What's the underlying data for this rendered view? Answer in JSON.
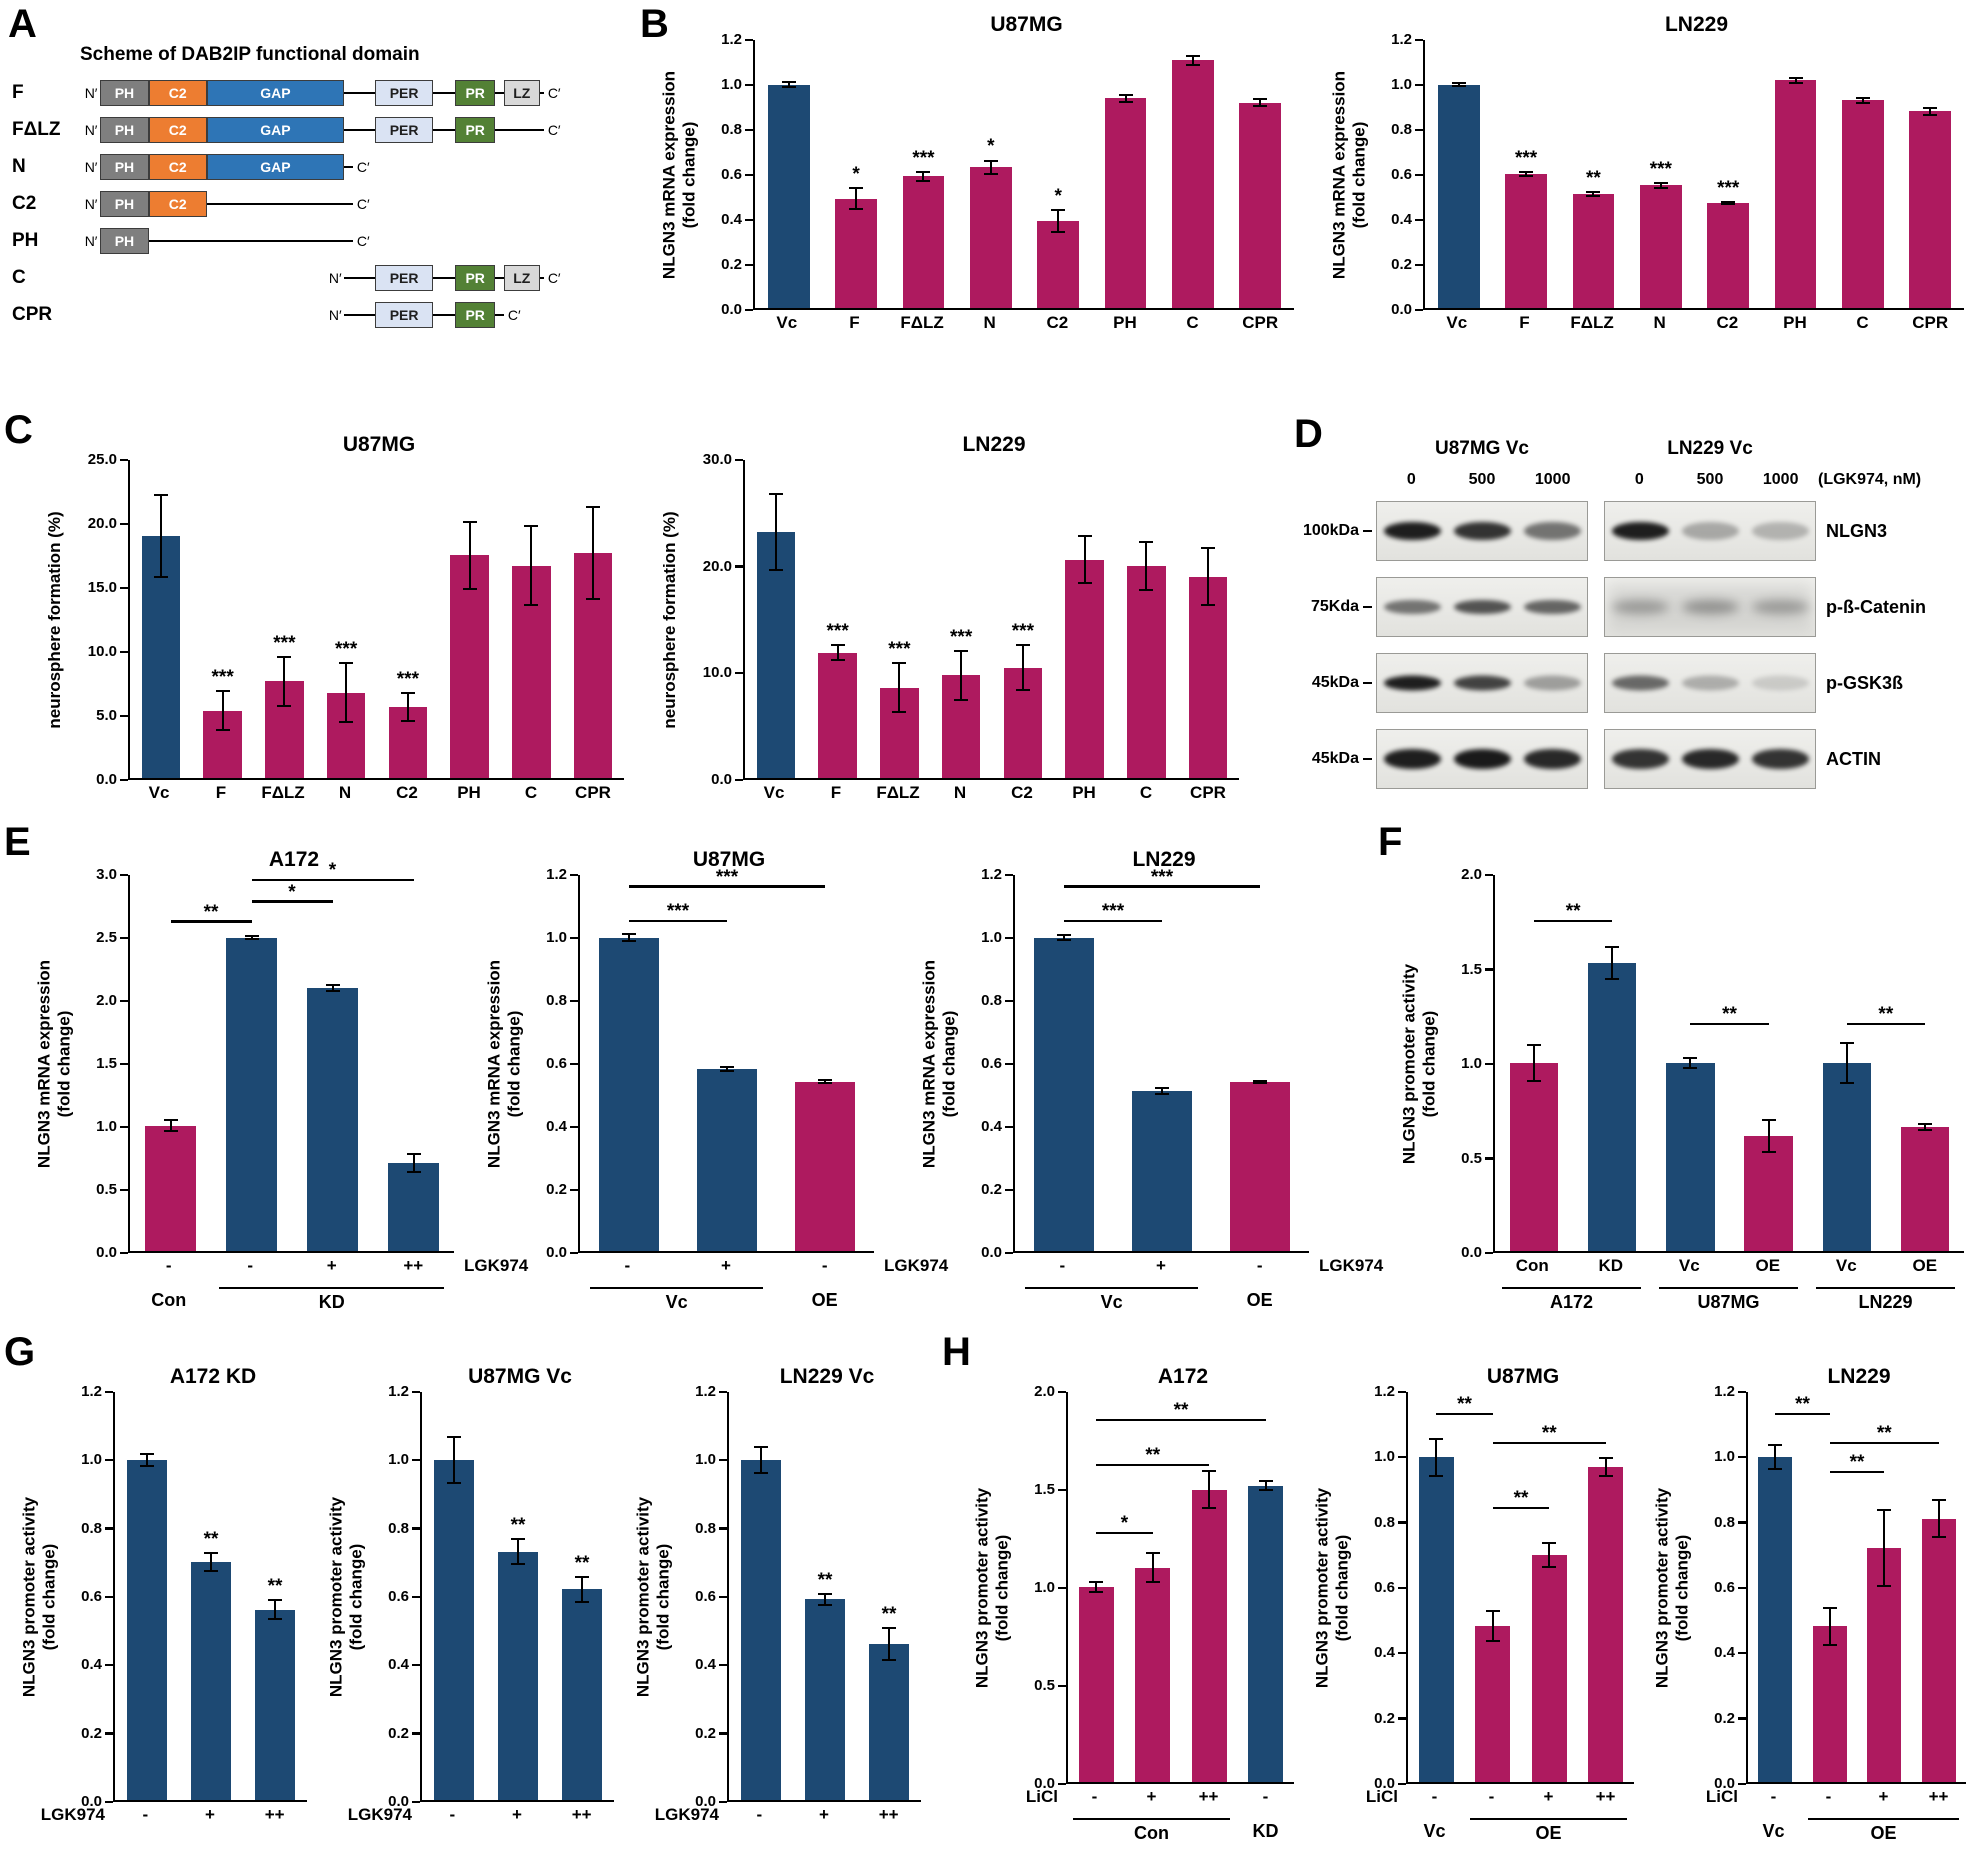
{
  "accent_colors": {
    "blue": "#1d4973",
    "crimson": "#ae1a5f"
  },
  "panel_letters": {
    "a": "A",
    "b": "B",
    "c": "C",
    "d": "D",
    "e": "E",
    "f": "F",
    "g": "G",
    "h": "H"
  },
  "panel_a": {
    "title": "Scheme of DAB2IP functional domain",
    "n_label": "N′",
    "c_label": "C′",
    "domains": {
      "PH": {
        "label": "PH"
      },
      "C2": {
        "label": "C2"
      },
      "GAP": {
        "label": "GAP"
      },
      "PER": {
        "label": "PER"
      },
      "PR": {
        "label": "PR"
      },
      "LZ": {
        "label": "LZ"
      }
    },
    "rows": [
      {
        "label": "F",
        "start": 0,
        "end": 100,
        "domains": [
          "PH",
          "C2",
          "GAP",
          "PER",
          "PR",
          "LZ"
        ]
      },
      {
        "label": "FΔLZ",
        "start": 0,
        "end": 100,
        "domains": [
          "PH",
          "C2",
          "GAP",
          "PER",
          "PR"
        ]
      },
      {
        "label": "N",
        "start": 0,
        "end": 57,
        "domains": [
          "PH",
          "C2",
          "GAP"
        ]
      },
      {
        "label": "C2",
        "start": 0,
        "end": 57,
        "domains": [
          "PH",
          "C2"
        ]
      },
      {
        "label": "PH",
        "start": 0,
        "end": 57,
        "domains": [
          "PH"
        ]
      },
      {
        "label": "C",
        "start": 55,
        "end": 100,
        "domains": [
          "PER",
          "PR",
          "LZ"
        ]
      },
      {
        "label": "CPR",
        "start": 55,
        "end": 91,
        "domains": [
          "PER",
          "PR"
        ]
      }
    ]
  },
  "panel_d": {
    "col_titles": [
      "U87MG Vc",
      "LN229 Vc"
    ],
    "lane_labels": [
      "0",
      "500",
      "1000"
    ],
    "dose_label": "(LGK974, nM)",
    "rows": [
      {
        "mw": "100kDa",
        "protein": "NLGN3",
        "band_h": 18,
        "left": [
          0.95,
          0.85,
          0.55
        ],
        "right": [
          0.95,
          0.3,
          0.25
        ],
        "noisy": false
      },
      {
        "mw": "75Kda",
        "protein": "p-ß-Catenin",
        "band_h": 14,
        "left": [
          0.55,
          0.7,
          0.62
        ],
        "right": [
          0.35,
          0.4,
          0.35
        ],
        "noisy": true
      },
      {
        "mw": "45kDa",
        "protein": "p-GSK3ß",
        "band_h": 15,
        "left": [
          0.95,
          0.78,
          0.35
        ],
        "right": [
          0.6,
          0.28,
          0.14
        ],
        "noisy": false
      },
      {
        "mw": "45kDa",
        "protein": "ACTIN",
        "band_h": 20,
        "left": [
          0.95,
          0.97,
          0.9
        ],
        "right": [
          0.85,
          0.9,
          0.85
        ],
        "noisy": false
      }
    ]
  },
  "chart_data": [
    {
      "id": "b_u87mg",
      "type": "bar",
      "title": "U87MG",
      "ylabel": "NLGN3 mRNA expression\n(fold change)",
      "ylim": [
        0,
        1.2
      ],
      "yticks": [
        "0.0",
        "0.2",
        "0.4",
        "0.6",
        "0.8",
        "1.0",
        "1.2"
      ],
      "categories": [
        "Vc",
        "F",
        "FΔLZ",
        "N",
        "C2",
        "PH",
        "C",
        "CPR"
      ],
      "values": [
        1.0,
        0.49,
        0.59,
        0.63,
        0.39,
        0.94,
        1.11,
        0.92
      ],
      "errors": [
        0.015,
        0.05,
        0.025,
        0.035,
        0.055,
        0.02,
        0.025,
        0.02
      ],
      "colors": [
        "blue",
        "crimson",
        "crimson",
        "crimson",
        "crimson",
        "crimson",
        "crimson",
        "crimson"
      ],
      "sig": [
        "",
        "*",
        "***",
        "*",
        "*",
        "",
        "",
        ""
      ]
    },
    {
      "id": "b_ln229",
      "type": "bar",
      "title": "LN229",
      "ylabel": "NLGN3 mRNA expression\n(fold change)",
      "ylim": [
        0,
        1.2
      ],
      "yticks": [
        "0.0",
        "0.2",
        "0.4",
        "0.6",
        "0.8",
        "1.0",
        "1.2"
      ],
      "categories": [
        "Vc",
        "F",
        "FΔLZ",
        "N",
        "C2",
        "PH",
        "C",
        "CPR"
      ],
      "values": [
        1.0,
        0.6,
        0.51,
        0.55,
        0.47,
        1.02,
        0.93,
        0.88
      ],
      "errors": [
        0.012,
        0.015,
        0.015,
        0.015,
        0.01,
        0.015,
        0.015,
        0.02
      ],
      "colors": [
        "blue",
        "crimson",
        "crimson",
        "crimson",
        "crimson",
        "crimson",
        "crimson",
        "crimson"
      ],
      "sig": [
        "",
        "***",
        "**",
        "***",
        "***",
        "",
        "",
        ""
      ]
    },
    {
      "id": "c_u87mg",
      "type": "bar",
      "title": "U87MG",
      "ylabel": "neurosphere formation (%)",
      "ylim": [
        0,
        25
      ],
      "yticks": [
        "0.0",
        "5.0",
        "10.0",
        "15.0",
        "20.0",
        "25.0"
      ],
      "categories": [
        "Vc",
        "F",
        "FΔLZ",
        "N",
        "C2",
        "PH",
        "C",
        "CPR"
      ],
      "values": [
        19.0,
        5.3,
        7.6,
        6.7,
        5.6,
        17.5,
        16.7,
        17.7
      ],
      "errors": [
        3.3,
        1.6,
        2.0,
        2.4,
        1.2,
        2.7,
        3.2,
        3.7
      ],
      "colors": [
        "blue",
        "crimson",
        "crimson",
        "crimson",
        "crimson",
        "crimson",
        "crimson",
        "crimson"
      ],
      "sig": [
        "",
        "***",
        "***",
        "***",
        "***",
        "",
        "",
        ""
      ]
    },
    {
      "id": "c_ln229",
      "type": "bar",
      "title": "LN229",
      "ylabel": "neurosphere formation (%)",
      "ylim": [
        0,
        30
      ],
      "yticks": [
        "0.0",
        "10.0",
        "20.0",
        "30.0"
      ],
      "categories": [
        "Vc",
        "F",
        "FΔLZ",
        "N",
        "C2",
        "PH",
        "C",
        "CPR"
      ],
      "values": [
        23.2,
        11.8,
        8.5,
        9.7,
        10.4,
        20.6,
        20.0,
        19.0
      ],
      "errors": [
        3.7,
        0.8,
        2.4,
        2.4,
        2.2,
        2.3,
        2.4,
        2.8
      ],
      "colors": [
        "blue",
        "crimson",
        "crimson",
        "crimson",
        "crimson",
        "crimson",
        "crimson",
        "crimson"
      ],
      "sig": [
        "",
        "***",
        "***",
        "***",
        "***",
        "",
        "",
        ""
      ]
    },
    {
      "id": "e_a172",
      "type": "bar",
      "title": "A172",
      "ylabel": "NLGN3 mRNA expression\n(fold change)",
      "ylim": [
        0,
        3.0
      ],
      "yticks": [
        "0.0",
        "0.5",
        "1.0",
        "1.5",
        "2.0",
        "2.5",
        "3.0"
      ],
      "categories": [
        "-",
        "-",
        "+",
        "++"
      ],
      "values": [
        1.0,
        2.5,
        2.1,
        0.7
      ],
      "errors": [
        0.05,
        0.02,
        0.03,
        0.08
      ],
      "colors": [
        "crimson",
        "blue",
        "blue",
        "blue"
      ],
      "sig": [
        "",
        "",
        "",
        ""
      ],
      "sig_lines": [
        {
          "from": 0,
          "to": 1,
          "y": 2.62,
          "label": "**"
        },
        {
          "from": 1,
          "to": 2,
          "y": 2.78,
          "label": "*"
        },
        {
          "from": 1,
          "to": 3,
          "y": 2.95,
          "label": "*"
        }
      ],
      "xtag": {
        "text": "LGK974",
        "side": "right"
      },
      "groups": [
        {
          "label": "Con",
          "from": 0,
          "to": 0,
          "line": false
        },
        {
          "label": "KD",
          "from": 1,
          "to": 3,
          "line": true
        }
      ]
    },
    {
      "id": "e_u87mg",
      "type": "bar",
      "title": "U87MG",
      "ylabel": "NLGN3 mRNA expression\n(fold change)",
      "ylim": [
        0,
        1.2
      ],
      "yticks": [
        "0.0",
        "0.2",
        "0.4",
        "0.6",
        "0.8",
        "1.0",
        "1.2"
      ],
      "categories": [
        "-",
        "+",
        "-"
      ],
      "values": [
        1.0,
        0.58,
        0.54
      ],
      "errors": [
        0.015,
        0.01,
        0.008
      ],
      "colors": [
        "blue",
        "blue",
        "crimson"
      ],
      "sig": [
        "",
        "",
        ""
      ],
      "sig_lines": [
        {
          "from": 0,
          "to": 1,
          "y": 1.05,
          "label": "***"
        },
        {
          "from": 0,
          "to": 2,
          "y": 1.16,
          "label": "***"
        }
      ],
      "xtag": {
        "text": "LGK974",
        "side": "right"
      },
      "groups": [
        {
          "label": "Vc",
          "from": 0,
          "to": 1,
          "line": true
        },
        {
          "label": "OE",
          "from": 2,
          "to": 2,
          "line": false
        }
      ]
    },
    {
      "id": "e_ln229",
      "type": "bar",
      "title": "LN229",
      "ylabel": "NLGN3 mRNA expression\n(fold change)",
      "ylim": [
        0,
        1.2
      ],
      "yticks": [
        "0.0",
        "0.2",
        "0.4",
        "0.6",
        "0.8",
        "1.0",
        "1.2"
      ],
      "categories": [
        "-",
        "+",
        "-"
      ],
      "values": [
        1.0,
        0.51,
        0.54
      ],
      "errors": [
        0.012,
        0.012,
        0.006
      ],
      "colors": [
        "blue",
        "blue",
        "crimson"
      ],
      "sig": [
        "",
        "",
        ""
      ],
      "sig_lines": [
        {
          "from": 0,
          "to": 1,
          "y": 1.05,
          "label": "***"
        },
        {
          "from": 0,
          "to": 2,
          "y": 1.16,
          "label": "***"
        }
      ],
      "xtag": {
        "text": "LGK974",
        "side": "right"
      },
      "groups": [
        {
          "label": "Vc",
          "from": 0,
          "to": 1,
          "line": true
        },
        {
          "label": "OE",
          "from": 2,
          "to": 2,
          "line": false
        }
      ]
    },
    {
      "id": "f",
      "type": "bar",
      "title": "",
      "ylabel": "NLGN3 promoter activity\n(fold change)",
      "ylim": [
        0,
        2.0
      ],
      "yticks": [
        "0.0",
        "0.5",
        "1.0",
        "1.5",
        "2.0"
      ],
      "categories": [
        "Con",
        "KD",
        "Vc",
        "OE",
        "Vc",
        "OE"
      ],
      "values": [
        1.0,
        1.53,
        1.0,
        0.61,
        1.0,
        0.66
      ],
      "errors": [
        0.1,
        0.09,
        0.03,
        0.09,
        0.11,
        0.02
      ],
      "colors": [
        "crimson",
        "blue",
        "blue",
        "crimson",
        "blue",
        "crimson"
      ],
      "sig": [
        "",
        "",
        "",
        "",
        "",
        ""
      ],
      "sig_lines": [
        {
          "from": 0,
          "to": 1,
          "y": 1.75,
          "label": "**"
        },
        {
          "from": 2,
          "to": 3,
          "y": 1.2,
          "label": "**"
        },
        {
          "from": 4,
          "to": 5,
          "y": 1.2,
          "label": "**"
        }
      ],
      "groups": [
        {
          "label": "A172",
          "from": 0,
          "to": 1,
          "line": true
        },
        {
          "label": "U87MG",
          "from": 2,
          "to": 3,
          "line": true
        },
        {
          "label": "LN229",
          "from": 4,
          "to": 5,
          "line": true
        }
      ]
    },
    {
      "id": "g_a172kd",
      "type": "bar",
      "title": "A172 KD",
      "ylabel": "NLGN3 promoter activity\n(fold change)",
      "ylim": [
        0,
        1.2
      ],
      "yticks": [
        "0.0",
        "0.2",
        "0.4",
        "0.6",
        "0.8",
        "1.0",
        "1.2"
      ],
      "categories": [
        "-",
        "+",
        "++"
      ],
      "values": [
        1.0,
        0.7,
        0.56
      ],
      "errors": [
        0.02,
        0.03,
        0.03
      ],
      "colors": [
        "blue",
        "blue",
        "blue"
      ],
      "sig": [
        "",
        "**",
        "**"
      ],
      "xtag": {
        "text": "LGK974",
        "side": "left"
      }
    },
    {
      "id": "g_u87mgvc",
      "type": "bar",
      "title": "U87MG Vc",
      "ylabel": "NLGN3 promoter activity\n(fold change)",
      "ylim": [
        0,
        1.2
      ],
      "yticks": [
        "0.0",
        "0.2",
        "0.4",
        "0.6",
        "0.8",
        "1.0",
        "1.2"
      ],
      "categories": [
        "-",
        "+",
        "++"
      ],
      "values": [
        1.0,
        0.73,
        0.62
      ],
      "errors": [
        0.07,
        0.04,
        0.04
      ],
      "colors": [
        "blue",
        "blue",
        "blue"
      ],
      "sig": [
        "",
        "**",
        "**"
      ],
      "xtag": {
        "text": "LGK974",
        "side": "left"
      }
    },
    {
      "id": "g_ln229vc",
      "type": "bar",
      "title": "LN229 Vc",
      "ylabel": "NLGN3 promoter activity\n(fold change)",
      "ylim": [
        0,
        1.2
      ],
      "yticks": [
        "0.0",
        "0.2",
        "0.4",
        "0.6",
        "0.8",
        "1.0",
        "1.2"
      ],
      "categories": [
        "-",
        "+",
        "++"
      ],
      "values": [
        1.0,
        0.59,
        0.46
      ],
      "errors": [
        0.04,
        0.02,
        0.05
      ],
      "colors": [
        "blue",
        "blue",
        "blue"
      ],
      "sig": [
        "",
        "**",
        "**"
      ],
      "xtag": {
        "text": "LGK974",
        "side": "left"
      }
    },
    {
      "id": "h_a172",
      "type": "bar",
      "title": "A172",
      "ylabel": "NLGN3 promoter activity\n(fold change)",
      "ylim": [
        0,
        2.0
      ],
      "yticks": [
        "0.0",
        "0.5",
        "1.0",
        "1.5",
        "2.0"
      ],
      "categories": [
        "-",
        "+",
        "++",
        "-"
      ],
      "values": [
        1.0,
        1.1,
        1.5,
        1.52
      ],
      "errors": [
        0.03,
        0.08,
        0.1,
        0.03
      ],
      "colors": [
        "crimson",
        "crimson",
        "crimson",
        "blue"
      ],
      "sig": [
        "",
        "",
        "",
        ""
      ],
      "sig_lines": [
        {
          "from": 0,
          "to": 1,
          "y": 1.27,
          "label": "*"
        },
        {
          "from": 0,
          "to": 2,
          "y": 1.62,
          "label": "**"
        },
        {
          "from": 0,
          "to": 3,
          "y": 1.85,
          "label": "**"
        }
      ],
      "xtag": {
        "text": "LiCl",
        "side": "left"
      },
      "groups": [
        {
          "label": "Con",
          "from": 0,
          "to": 2,
          "line": true
        },
        {
          "label": "KD",
          "from": 3,
          "to": 3,
          "line": false
        }
      ]
    },
    {
      "id": "h_u87mg",
      "type": "bar",
      "title": "U87MG",
      "ylabel": "NLGN3 promoter activity\n(fold change)",
      "ylim": [
        0,
        1.2
      ],
      "yticks": [
        "0.0",
        "0.2",
        "0.4",
        "0.6",
        "0.8",
        "1.0",
        "1.2"
      ],
      "categories": [
        "-",
        "-",
        "+",
        "++"
      ],
      "values": [
        1.0,
        0.48,
        0.7,
        0.97
      ],
      "errors": [
        0.06,
        0.05,
        0.04,
        0.03
      ],
      "colors": [
        "blue",
        "crimson",
        "crimson",
        "crimson"
      ],
      "sig": [
        "",
        "",
        "",
        ""
      ],
      "sig_lines": [
        {
          "from": 0,
          "to": 1,
          "y": 1.13,
          "label": "**"
        },
        {
          "from": 1,
          "to": 2,
          "y": 0.84,
          "label": "**"
        },
        {
          "from": 1,
          "to": 3,
          "y": 1.04,
          "label": "**"
        }
      ],
      "xtag": {
        "text": "LiCl",
        "side": "left"
      },
      "groups": [
        {
          "label": "Vc",
          "from": 0,
          "to": 0,
          "line": false
        },
        {
          "label": "OE",
          "from": 1,
          "to": 3,
          "line": true
        }
      ]
    },
    {
      "id": "h_ln229",
      "type": "bar",
      "title": "LN229",
      "ylabel": "NLGN3 promoter activity\n(fold change)",
      "ylim": [
        0,
        1.2
      ],
      "yticks": [
        "0.0",
        "0.2",
        "0.4",
        "0.6",
        "0.8",
        "1.0",
        "1.2"
      ],
      "categories": [
        "-",
        "-",
        "+",
        "++"
      ],
      "values": [
        1.0,
        0.48,
        0.72,
        0.81
      ],
      "errors": [
        0.04,
        0.06,
        0.12,
        0.06
      ],
      "colors": [
        "blue",
        "crimson",
        "crimson",
        "crimson"
      ],
      "sig": [
        "",
        "",
        "",
        ""
      ],
      "sig_lines": [
        {
          "from": 0,
          "to": 1,
          "y": 1.13,
          "label": "**"
        },
        {
          "from": 1,
          "to": 2,
          "y": 0.95,
          "label": "**"
        },
        {
          "from": 1,
          "to": 3,
          "y": 1.04,
          "label": "**"
        }
      ],
      "xtag": {
        "text": "LiCl",
        "side": "left"
      },
      "groups": [
        {
          "label": "Vc",
          "from": 0,
          "to": 0,
          "line": false
        },
        {
          "label": "OE",
          "from": 1,
          "to": 3,
          "line": true
        }
      ]
    }
  ]
}
